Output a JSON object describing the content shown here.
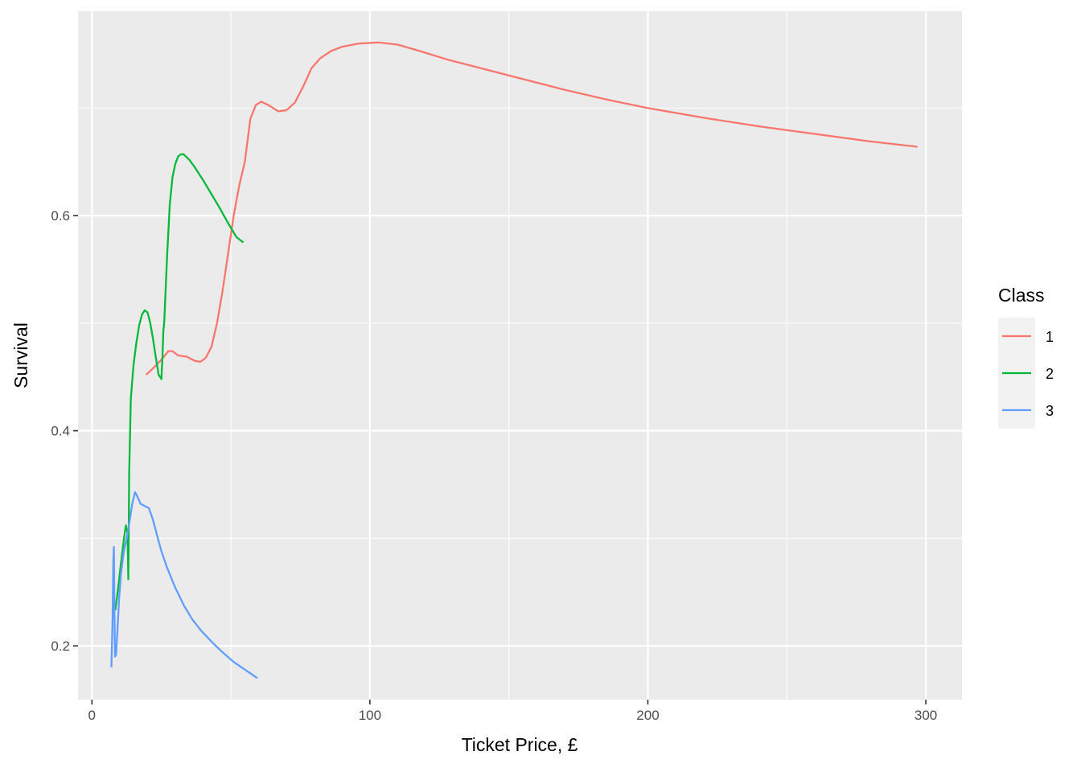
{
  "chart_data": {
    "type": "line",
    "title": "",
    "xlabel": "Ticket Price, £",
    "ylabel": "Survival",
    "xlim": [
      -5,
      313
    ],
    "ylim": [
      0.15,
      0.79
    ],
    "x_ticks": [
      0,
      100,
      200,
      300
    ],
    "y_ticks": [
      0.2,
      0.4,
      0.6
    ],
    "grid": true,
    "legend": {
      "title": "Class",
      "placement": "right"
    },
    "series": [
      {
        "name": "1",
        "color": "#F8766D",
        "points": [
          [
            19.5,
            0.452
          ],
          [
            22,
            0.458
          ],
          [
            25,
            0.466
          ],
          [
            27.5,
            0.474
          ],
          [
            29,
            0.474
          ],
          [
            31,
            0.47
          ],
          [
            34,
            0.469
          ],
          [
            37,
            0.465
          ],
          [
            39,
            0.464
          ],
          [
            41,
            0.468
          ],
          [
            43,
            0.478
          ],
          [
            45,
            0.5
          ],
          [
            47,
            0.53
          ],
          [
            49,
            0.565
          ],
          [
            51,
            0.6
          ],
          [
            53,
            0.628
          ],
          [
            55,
            0.65
          ],
          [
            57,
            0.69
          ],
          [
            59,
            0.703
          ],
          [
            61,
            0.706
          ],
          [
            64,
            0.702
          ],
          [
            67,
            0.697
          ],
          [
            70,
            0.698
          ],
          [
            73,
            0.705
          ],
          [
            76,
            0.72
          ],
          [
            79,
            0.737
          ],
          [
            82,
            0.746
          ],
          [
            86,
            0.753
          ],
          [
            90,
            0.757
          ],
          [
            96,
            0.76
          ],
          [
            103,
            0.761
          ],
          [
            110,
            0.759
          ],
          [
            118,
            0.753
          ],
          [
            128,
            0.745
          ],
          [
            140,
            0.737
          ],
          [
            155,
            0.727
          ],
          [
            170,
            0.717
          ],
          [
            185,
            0.708
          ],
          [
            200,
            0.7
          ],
          [
            220,
            0.691
          ],
          [
            240,
            0.683
          ],
          [
            260,
            0.676
          ],
          [
            280,
            0.669
          ],
          [
            297,
            0.664
          ]
        ]
      },
      {
        "name": "2",
        "color": "#00BA38",
        "points": [
          [
            8.4,
            0.233
          ],
          [
            9.5,
            0.255
          ],
          [
            10.5,
            0.278
          ],
          [
            11.5,
            0.299
          ],
          [
            12.2,
            0.312
          ],
          [
            12.8,
            0.305
          ],
          [
            13.1,
            0.262
          ],
          [
            13.4,
            0.36
          ],
          [
            14,
            0.43
          ],
          [
            15,
            0.462
          ],
          [
            16,
            0.482
          ],
          [
            17,
            0.498
          ],
          [
            18,
            0.508
          ],
          [
            19,
            0.512
          ],
          [
            20,
            0.51
          ],
          [
            21,
            0.5
          ],
          [
            22,
            0.485
          ],
          [
            23,
            0.468
          ],
          [
            24,
            0.452
          ],
          [
            25,
            0.448
          ],
          [
            25.4,
            0.47
          ],
          [
            25.7,
            0.493
          ],
          [
            26,
            0.5
          ],
          [
            27,
            0.56
          ],
          [
            28,
            0.61
          ],
          [
            29,
            0.636
          ],
          [
            30,
            0.648
          ],
          [
            31,
            0.655
          ],
          [
            32,
            0.657
          ],
          [
            33,
            0.657
          ],
          [
            35,
            0.652
          ],
          [
            37,
            0.645
          ],
          [
            40,
            0.633
          ],
          [
            43,
            0.62
          ],
          [
            46,
            0.607
          ],
          [
            49,
            0.593
          ],
          [
            52,
            0.58
          ],
          [
            54.5,
            0.575
          ]
        ]
      },
      {
        "name": "3",
        "color": "#619CFF",
        "points": [
          [
            7,
            0.18
          ],
          [
            7.4,
            0.22
          ],
          [
            7.7,
            0.28
          ],
          [
            7.9,
            0.292
          ],
          [
            8.1,
            0.235
          ],
          [
            8.3,
            0.19
          ],
          [
            8.7,
            0.192
          ],
          [
            9.2,
            0.215
          ],
          [
            9.8,
            0.245
          ],
          [
            10.5,
            0.268
          ],
          [
            11.5,
            0.288
          ],
          [
            12.5,
            0.3
          ],
          [
            13.5,
            0.315
          ],
          [
            14.5,
            0.332
          ],
          [
            15.5,
            0.343
          ],
          [
            16.5,
            0.338
          ],
          [
            17.5,
            0.332
          ],
          [
            19,
            0.33
          ],
          [
            20.5,
            0.328
          ],
          [
            22,
            0.317
          ],
          [
            23.5,
            0.302
          ],
          [
            25,
            0.288
          ],
          [
            27,
            0.273
          ],
          [
            30,
            0.254
          ],
          [
            33,
            0.238
          ],
          [
            36,
            0.225
          ],
          [
            39,
            0.215
          ],
          [
            43,
            0.204
          ],
          [
            47,
            0.194
          ],
          [
            51,
            0.185
          ],
          [
            55,
            0.178
          ],
          [
            59.5,
            0.17
          ]
        ]
      }
    ]
  }
}
